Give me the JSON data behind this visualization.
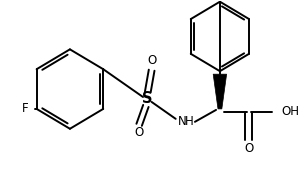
{
  "bg_color": "#ffffff",
  "line_color": "#000000",
  "line_width": 1.4,
  "font_size": 8.5,
  "figsize": [
    3.02,
    1.94
  ],
  "dpi": 100,
  "xlim": [
    0,
    302
  ],
  "ylim": [
    0,
    194
  ]
}
